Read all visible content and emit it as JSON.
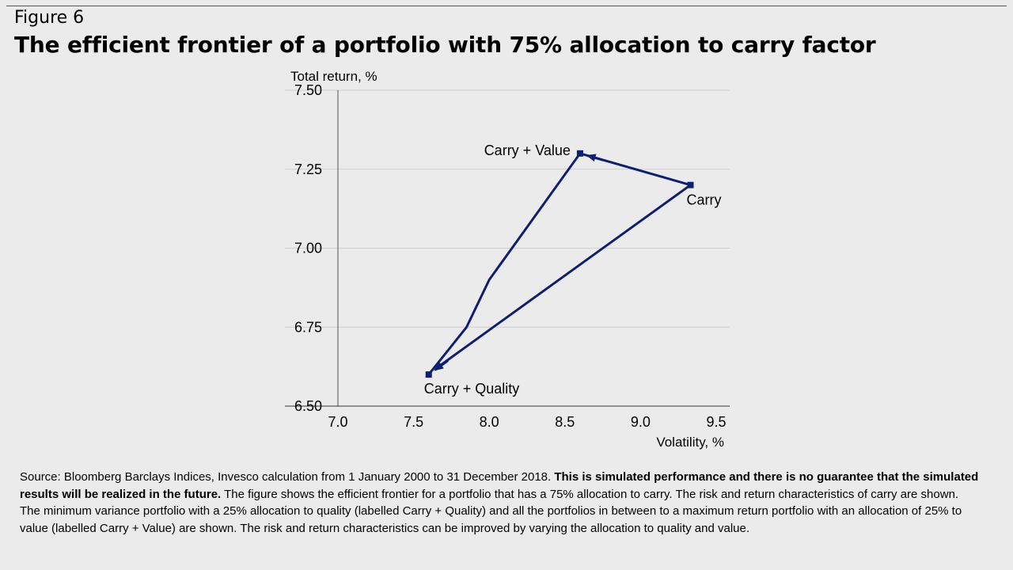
{
  "figure_label": "Figure 6",
  "title": "The efficient frontier of a portfolio with 75% allocation to carry factor",
  "source": {
    "text_1": "Source: Bloomberg Barclays Indices, Invesco calculation from 1 January 2000 to 31 December 2018. ",
    "bold": "This is simulated performance and there is no guarantee that the simulated results will be realized in the future.",
    "text_2": " The figure shows the efficient frontier for a portfolio that has a 75% allocation to carry. The risk and return characteristics of carry are shown. The minimum variance portfolio with a 25% allocation to quality (labelled Carry + Quality) and all the portfolios in between to a maximum return portfolio with an allocation of 25% to value (labelled Carry + Value) are shown. The risk and return characteristics can be improved by varying the allocation to quality and value."
  },
  "chart_data": {
    "type": "line",
    "xlabel": "Volatility, %",
    "ylabel": "Total return, %",
    "xlim": [
      7.0,
      9.5
    ],
    "ylim": [
      6.5,
      7.5
    ],
    "x_ticks": [
      "7.0",
      "7.5",
      "8.0",
      "8.5",
      "9.0",
      "9.5"
    ],
    "y_ticks": [
      "6.50",
      "6.75",
      "7.00",
      "7.25",
      "7.50"
    ],
    "grid": "horizontal",
    "color": "#0d1f73",
    "series": [
      {
        "x": [
          7.6,
          7.85,
          8.0,
          8.6,
          9.33,
          7.65
        ],
        "y": [
          6.6,
          6.75,
          6.9,
          7.3,
          7.2,
          6.62
        ]
      }
    ],
    "points": [
      {
        "label": "Carry + Value",
        "x": 8.6,
        "y": 7.3
      },
      {
        "label": "Carry",
        "x": 9.33,
        "y": 7.2
      },
      {
        "label": "Carry + Quality",
        "x": 7.6,
        "y": 6.6
      }
    ],
    "arrows": [
      {
        "from": [
          9.33,
          7.2
        ],
        "to": [
          8.6,
          7.3
        ]
      },
      {
        "from": [
          9.33,
          7.2
        ],
        "to": [
          7.6,
          6.6
        ]
      }
    ]
  }
}
